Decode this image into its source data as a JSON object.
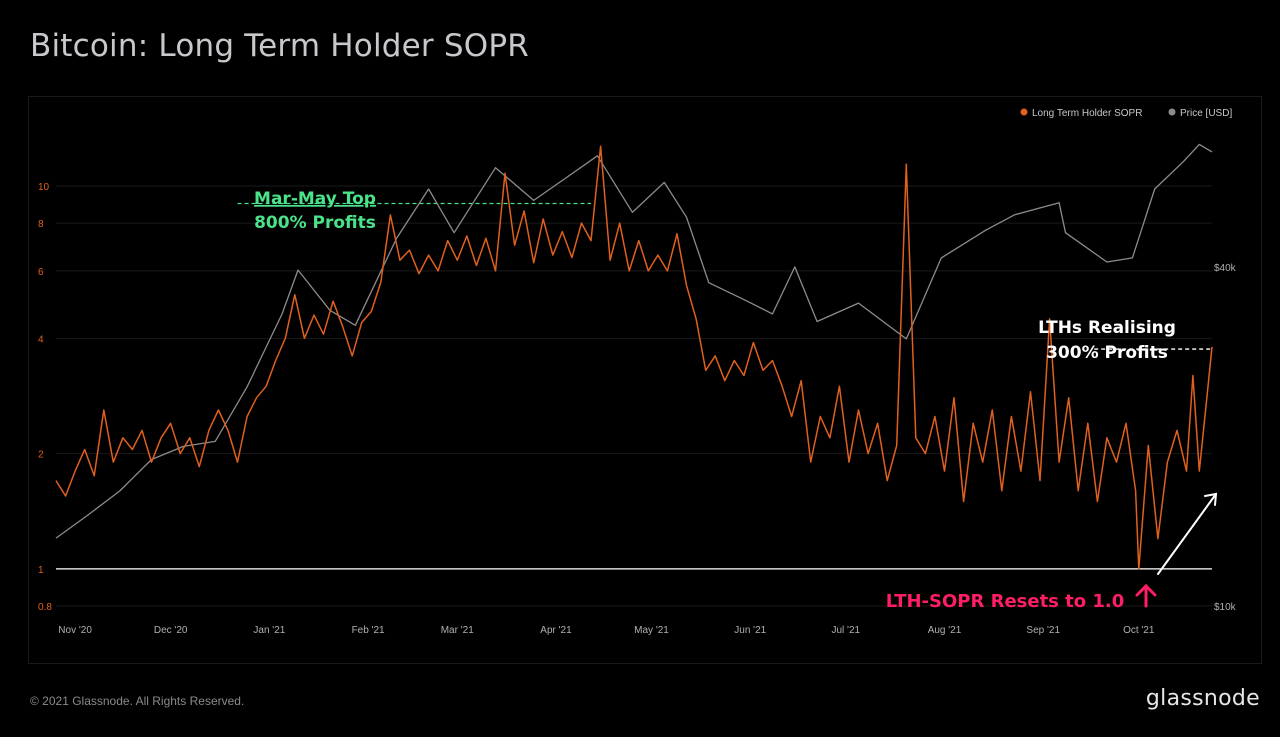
{
  "title": "Bitcoin: Long Term Holder SOPR",
  "footer": {
    "copyright": "© 2021 Glassnode. All Rights Reserved.",
    "logo": "glassnode"
  },
  "colors": {
    "sopr": "#e0601e",
    "price": "#8c8c8c",
    "baseline": "#ffffff",
    "top_ann": "#4ae389",
    "reset_ann": "#ff1e64",
    "profit_ann": "#ffffff"
  },
  "annotations": {
    "top_line1": "Mar-May Top",
    "top_line2": "800% Profits",
    "lth_line1": "LTHs Realising",
    "lth_line2": "300% Profits",
    "reset": "LTH-SOPR Resets to 1.0"
  },
  "chart_data": {
    "type": "line",
    "xlabel": "",
    "ylabel": "",
    "x_ticks": [
      "Nov '20",
      "Dec '20",
      "Jan '21",
      "Feb '21",
      "Mar '21",
      "Apr '21",
      "May '21",
      "Jun '21",
      "Jul '21",
      "Aug '21",
      "Sep '21",
      "Oct '21"
    ],
    "x_range": [
      "2020-10-26",
      "2021-10-24"
    ],
    "y_left": {
      "scale": "log",
      "ticks": [
        "0.8",
        "1",
        "2",
        "4",
        "6",
        "8",
        "10"
      ],
      "range": [
        0.8,
        14
      ]
    },
    "y_right": {
      "scale": "log",
      "ticks": [
        "$10k",
        "$40k"
      ],
      "range": [
        10000,
        70000
      ]
    },
    "legend": {
      "position": "top-right",
      "entries": [
        "Long Term Holder SOPR",
        "Price [USD]"
      ]
    },
    "reference_lines": [
      {
        "y": 1.0,
        "label": ""
      },
      {
        "y": 9.0,
        "from": "2020-12-22",
        "to": "2021-04-12"
      },
      {
        "y": 3.75,
        "from": "2021-09-17",
        "to": "2021-10-24"
      }
    ],
    "series": [
      {
        "name": "Long Term Holder SOPR",
        "axis": "left",
        "points": [
          [
            "2020-10-26",
            1.7
          ],
          [
            "2020-10-29",
            1.55
          ],
          [
            "2020-11-01",
            1.8
          ],
          [
            "2020-11-04",
            2.05
          ],
          [
            "2020-11-07",
            1.75
          ],
          [
            "2020-11-10",
            2.6
          ],
          [
            "2020-11-13",
            1.9
          ],
          [
            "2020-11-16",
            2.2
          ],
          [
            "2020-11-19",
            2.05
          ],
          [
            "2020-11-22",
            2.3
          ],
          [
            "2020-11-25",
            1.9
          ],
          [
            "2020-11-28",
            2.2
          ],
          [
            "2020-12-01",
            2.4
          ],
          [
            "2020-12-04",
            2.0
          ],
          [
            "2020-12-07",
            2.2
          ],
          [
            "2020-12-10",
            1.85
          ],
          [
            "2020-12-13",
            2.3
          ],
          [
            "2020-12-16",
            2.6
          ],
          [
            "2020-12-19",
            2.3
          ],
          [
            "2020-12-22",
            1.9
          ],
          [
            "2020-12-25",
            2.5
          ],
          [
            "2020-12-28",
            2.8
          ],
          [
            "2020-12-31",
            3.0
          ],
          [
            "2021-01-03",
            3.5
          ],
          [
            "2021-01-06",
            4.0
          ],
          [
            "2021-01-09",
            5.2
          ],
          [
            "2021-01-12",
            4.0
          ],
          [
            "2021-01-15",
            4.6
          ],
          [
            "2021-01-18",
            4.1
          ],
          [
            "2021-01-21",
            5.0
          ],
          [
            "2021-01-24",
            4.3
          ],
          [
            "2021-01-27",
            3.6
          ],
          [
            "2021-01-30",
            4.4
          ],
          [
            "2021-02-02",
            4.7
          ],
          [
            "2021-02-05",
            5.6
          ],
          [
            "2021-02-08",
            8.4
          ],
          [
            "2021-02-11",
            6.4
          ],
          [
            "2021-02-14",
            6.8
          ],
          [
            "2021-02-17",
            5.9
          ],
          [
            "2021-02-20",
            6.6
          ],
          [
            "2021-02-23",
            6.0
          ],
          [
            "2021-02-26",
            7.2
          ],
          [
            "2021-03-01",
            6.4
          ],
          [
            "2021-03-04",
            7.4
          ],
          [
            "2021-03-07",
            6.2
          ],
          [
            "2021-03-10",
            7.3
          ],
          [
            "2021-03-13",
            6.0
          ],
          [
            "2021-03-16",
            10.8
          ],
          [
            "2021-03-19",
            7.0
          ],
          [
            "2021-03-22",
            8.6
          ],
          [
            "2021-03-25",
            6.3
          ],
          [
            "2021-03-28",
            8.2
          ],
          [
            "2021-03-31",
            6.6
          ],
          [
            "2021-04-03",
            7.6
          ],
          [
            "2021-04-06",
            6.5
          ],
          [
            "2021-04-09",
            8.0
          ],
          [
            "2021-04-12",
            7.2
          ],
          [
            "2021-04-15",
            12.7
          ],
          [
            "2021-04-18",
            6.4
          ],
          [
            "2021-04-21",
            8.0
          ],
          [
            "2021-04-24",
            6.0
          ],
          [
            "2021-04-27",
            7.2
          ],
          [
            "2021-04-30",
            6.0
          ],
          [
            "2021-05-03",
            6.6
          ],
          [
            "2021-05-06",
            6.0
          ],
          [
            "2021-05-09",
            7.5
          ],
          [
            "2021-05-12",
            5.5
          ],
          [
            "2021-05-15",
            4.5
          ],
          [
            "2021-05-18",
            3.3
          ],
          [
            "2021-05-21",
            3.6
          ],
          [
            "2021-05-24",
            3.1
          ],
          [
            "2021-05-27",
            3.5
          ],
          [
            "2021-05-30",
            3.2
          ],
          [
            "2021-06-02",
            3.9
          ],
          [
            "2021-06-05",
            3.3
          ],
          [
            "2021-06-08",
            3.5
          ],
          [
            "2021-06-11",
            3.0
          ],
          [
            "2021-06-14",
            2.5
          ],
          [
            "2021-06-17",
            3.1
          ],
          [
            "2021-06-20",
            1.9
          ],
          [
            "2021-06-23",
            2.5
          ],
          [
            "2021-06-26",
            2.2
          ],
          [
            "2021-06-29",
            3.0
          ],
          [
            "2021-07-02",
            1.9
          ],
          [
            "2021-07-05",
            2.6
          ],
          [
            "2021-07-08",
            2.0
          ],
          [
            "2021-07-11",
            2.4
          ],
          [
            "2021-07-14",
            1.7
          ],
          [
            "2021-07-17",
            2.1
          ],
          [
            "2021-07-20",
            11.4
          ],
          [
            "2021-07-23",
            2.2
          ],
          [
            "2021-07-26",
            2.0
          ],
          [
            "2021-07-29",
            2.5
          ],
          [
            "2021-08-01",
            1.8
          ],
          [
            "2021-08-04",
            2.8
          ],
          [
            "2021-08-07",
            1.5
          ],
          [
            "2021-08-10",
            2.4
          ],
          [
            "2021-08-13",
            1.9
          ],
          [
            "2021-08-16",
            2.6
          ],
          [
            "2021-08-19",
            1.6
          ],
          [
            "2021-08-22",
            2.5
          ],
          [
            "2021-08-25",
            1.8
          ],
          [
            "2021-08-28",
            2.9
          ],
          [
            "2021-08-31",
            1.7
          ],
          [
            "2021-09-03",
            4.5
          ],
          [
            "2021-09-06",
            1.9
          ],
          [
            "2021-09-09",
            2.8
          ],
          [
            "2021-09-12",
            1.6
          ],
          [
            "2021-09-15",
            2.4
          ],
          [
            "2021-09-18",
            1.5
          ],
          [
            "2021-09-21",
            2.2
          ],
          [
            "2021-09-24",
            1.9
          ],
          [
            "2021-09-27",
            2.4
          ],
          [
            "2021-09-30",
            1.6
          ],
          [
            "2021-10-01",
            1.0
          ],
          [
            "2021-10-04",
            2.1
          ],
          [
            "2021-10-07",
            1.2
          ],
          [
            "2021-10-10",
            1.9
          ],
          [
            "2021-10-13",
            2.3
          ],
          [
            "2021-10-16",
            1.8
          ],
          [
            "2021-10-18",
            3.2
          ],
          [
            "2021-10-20",
            1.8
          ],
          [
            "2021-10-22",
            2.6
          ],
          [
            "2021-10-24",
            3.8
          ]
        ]
      },
      {
        "name": "Price [USD]",
        "axis": "right",
        "points": [
          [
            "2020-10-26",
            13200
          ],
          [
            "2020-11-05",
            14500
          ],
          [
            "2020-11-15",
            16000
          ],
          [
            "2020-11-25",
            18200
          ],
          [
            "2020-12-05",
            19200
          ],
          [
            "2020-12-15",
            19600
          ],
          [
            "2020-12-25",
            24500
          ],
          [
            "2021-01-05",
            33000
          ],
          [
            "2021-01-10",
            39500
          ],
          [
            "2021-01-20",
            33500
          ],
          [
            "2021-01-28",
            31500
          ],
          [
            "2021-02-10",
            45000
          ],
          [
            "2021-02-20",
            55000
          ],
          [
            "2021-02-28",
            46000
          ],
          [
            "2021-03-13",
            60000
          ],
          [
            "2021-03-25",
            52500
          ],
          [
            "2021-04-05",
            58000
          ],
          [
            "2021-04-14",
            63000
          ],
          [
            "2021-04-25",
            50000
          ],
          [
            "2021-05-05",
            56500
          ],
          [
            "2021-05-12",
            49000
          ],
          [
            "2021-05-19",
            37500
          ],
          [
            "2021-05-30",
            35000
          ],
          [
            "2021-06-08",
            33000
          ],
          [
            "2021-06-15",
            40000
          ],
          [
            "2021-06-22",
            32000
          ],
          [
            "2021-07-05",
            34500
          ],
          [
            "2021-07-20",
            29800
          ],
          [
            "2021-07-31",
            41500
          ],
          [
            "2021-08-14",
            46500
          ],
          [
            "2021-08-23",
            49500
          ],
          [
            "2021-09-06",
            52000
          ],
          [
            "2021-09-08",
            46000
          ],
          [
            "2021-09-21",
            40800
          ],
          [
            "2021-09-29",
            41500
          ],
          [
            "2021-10-06",
            55000
          ],
          [
            "2021-10-15",
            61500
          ],
          [
            "2021-10-20",
            66000
          ],
          [
            "2021-10-24",
            64000
          ]
        ]
      }
    ]
  }
}
